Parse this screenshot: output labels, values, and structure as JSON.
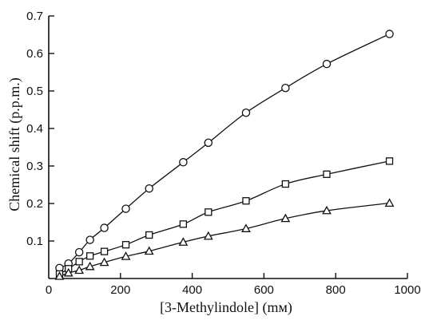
{
  "chart_data": {
    "type": "scatter",
    "xlabel": "[3-Methylindole] (mм)",
    "ylabel": "Chemical shift (p.p.m.)",
    "xlim": [
      0,
      1000
    ],
    "ylim": [
      0,
      0.7
    ],
    "x_ticks": [
      "0",
      "200",
      "400",
      "600",
      "800",
      "1000"
    ],
    "y_ticks": [
      "0.1",
      "0.2",
      "0.3",
      "0.4",
      "0.5",
      "0.6",
      "0.7"
    ],
    "grid": false,
    "series": [
      {
        "marker": "circle",
        "points": [
          [
            30,
            0.028
          ],
          [
            55,
            0.04
          ],
          [
            85,
            0.07
          ],
          [
            115,
            0.103
          ],
          [
            155,
            0.135
          ],
          [
            215,
            0.186
          ],
          [
            280,
            0.24
          ],
          [
            375,
            0.31
          ],
          [
            445,
            0.362
          ],
          [
            550,
            0.442
          ],
          [
            660,
            0.508
          ],
          [
            775,
            0.572
          ],
          [
            950,
            0.652
          ]
        ]
      },
      {
        "marker": "square",
        "points": [
          [
            30,
            0.012
          ],
          [
            55,
            0.026
          ],
          [
            85,
            0.045
          ],
          [
            115,
            0.06
          ],
          [
            155,
            0.072
          ],
          [
            215,
            0.09
          ],
          [
            280,
            0.116
          ],
          [
            375,
            0.145
          ],
          [
            445,
            0.177
          ],
          [
            550,
            0.207
          ],
          [
            660,
            0.252
          ],
          [
            775,
            0.278
          ],
          [
            950,
            0.313
          ]
        ]
      },
      {
        "marker": "triangle",
        "points": [
          [
            30,
            0.006
          ],
          [
            55,
            0.015
          ],
          [
            85,
            0.022
          ],
          [
            115,
            0.032
          ],
          [
            155,
            0.043
          ],
          [
            215,
            0.059
          ],
          [
            280,
            0.073
          ],
          [
            375,
            0.097
          ],
          [
            445,
            0.113
          ],
          [
            550,
            0.133
          ],
          [
            660,
            0.16
          ],
          [
            775,
            0.181
          ],
          [
            950,
            0.201
          ]
        ]
      }
    ]
  }
}
